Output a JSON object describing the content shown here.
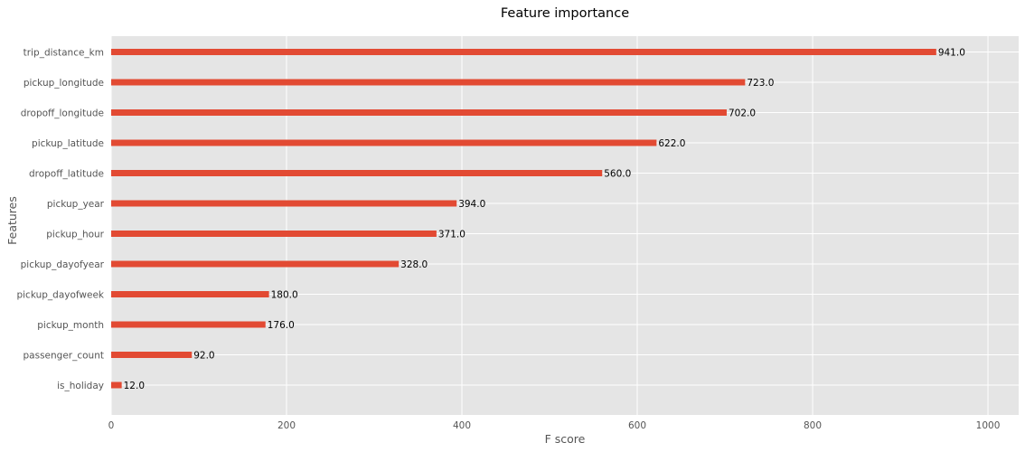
{
  "chart_data": {
    "type": "bar",
    "orientation": "horizontal",
    "title": "Feature importance",
    "xlabel": "F score",
    "ylabel": "Features",
    "xlim": [
      0,
      1035
    ],
    "xticks": [
      0,
      200,
      400,
      600,
      800,
      1000
    ],
    "grid": true,
    "legend": "none",
    "bar_color": "#E24A33",
    "background_color": "#E5E5E5",
    "categories": [
      "trip_distance_km",
      "pickup_longitude",
      "dropoff_longitude",
      "pickup_latitude",
      "dropoff_latitude",
      "pickup_year",
      "pickup_hour",
      "pickup_dayofyear",
      "pickup_dayofweek",
      "pickup_month",
      "passenger_count",
      "is_holiday"
    ],
    "values": [
      941,
      723,
      702,
      622,
      560,
      394,
      371,
      328,
      180,
      176,
      92,
      12
    ],
    "data_labels": [
      "941.0",
      "723.0",
      "702.0",
      "622.0",
      "560.0",
      "394.0",
      "371.0",
      "328.0",
      "180.0",
      "176.0",
      "92.0",
      "12.0"
    ]
  }
}
